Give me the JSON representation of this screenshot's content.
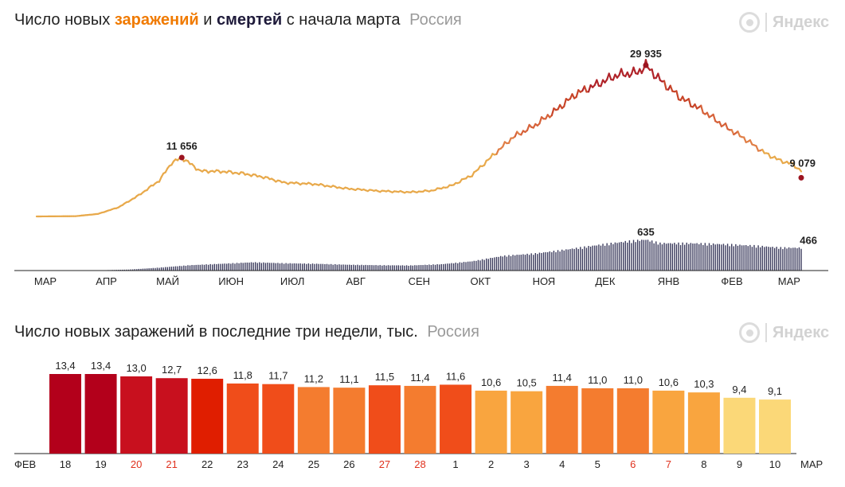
{
  "chart1": {
    "title_prefix": "Число новых ",
    "title_infections": "заражений",
    "title_and": " и ",
    "title_deaths": "смертей",
    "title_suffix": " с начала марта",
    "region": "Россия",
    "logo": "Яндекс"
  },
  "chart2": {
    "title": "Число новых заражений в последние три недели, тыс.",
    "region": "Россия",
    "logo": "Яндекс"
  },
  "chart_data": [
    {
      "type": "line",
      "title": "Число новых заражений и смертей с начала марта",
      "months": [
        "МАР",
        "АПР",
        "МАЙ",
        "ИЮН",
        "ИЮЛ",
        "АВГ",
        "СЕН",
        "ОКТ",
        "НОЯ",
        "ДЕК",
        "ЯНВ",
        "ФЕВ",
        "МАР"
      ],
      "x_range": [
        "2020-03-01",
        "2021-03-10"
      ],
      "series": [
        {
          "color": "#e8a94b",
          "points": [
            [
              "2020-03-01",
              0
            ],
            [
              "2020-03-20",
              50
            ],
            [
              "2020-03-31",
              500
            ],
            [
              "2020-04-10",
              1800
            ],
            [
              "2020-04-20",
              4200
            ],
            [
              "2020-04-30",
              7100
            ],
            [
              "2020-05-06",
              10600
            ],
            [
              "2020-05-11",
              11656
            ],
            [
              "2020-05-20",
              9000
            ],
            [
              "2020-05-31",
              8900
            ],
            [
              "2020-06-10",
              8500
            ],
            [
              "2020-06-20",
              7800
            ],
            [
              "2020-06-30",
              6700
            ],
            [
              "2020-07-15",
              6400
            ],
            [
              "2020-07-31",
              5500
            ],
            [
              "2020-08-15",
              5050
            ],
            [
              "2020-08-31",
              4800
            ],
            [
              "2020-09-10",
              5100
            ],
            [
              "2020-09-20",
              6100
            ],
            [
              "2020-09-30",
              8200
            ],
            [
              "2020-10-10",
              12000
            ],
            [
              "2020-10-20",
              15700
            ],
            [
              "2020-10-31",
              18100
            ],
            [
              "2020-11-10",
              21000
            ],
            [
              "2020-11-20",
              24300
            ],
            [
              "2020-11-30",
              26100
            ],
            [
              "2020-12-10",
              28000
            ],
            [
              "2020-12-20",
              28500
            ],
            [
              "2020-12-24",
              29935
            ],
            [
              "2020-12-31",
              27000
            ],
            [
              "2021-01-10",
              23500
            ],
            [
              "2021-01-20",
              21200
            ],
            [
              "2021-01-31",
              18000
            ],
            [
              "2021-02-10",
              15500
            ],
            [
              "2021-02-20",
              12600
            ],
            [
              "2021-02-28",
              11000
            ],
            [
              "2021-03-05",
              10500
            ],
            [
              "2021-03-10",
              9079
            ]
          ],
          "annotations": [
            {
              "date": "2020-05-11",
              "value": 11656,
              "label": "11 656"
            },
            {
              "date": "2020-12-24",
              "value": 29935,
              "label": "29 935"
            },
            {
              "date": "2021-03-10",
              "value": 9079,
              "label": "9 079"
            }
          ]
        },
        {
          "type": "bar",
          "color": "#3a3a5c",
          "points": [
            [
              "2020-03-01",
              0
            ],
            [
              "2020-03-31",
              5
            ],
            [
              "2020-04-15",
              20
            ],
            [
              "2020-04-30",
              60
            ],
            [
              "2020-05-15",
              110
            ],
            [
              "2020-05-31",
              140
            ],
            [
              "2020-06-15",
              170
            ],
            [
              "2020-06-30",
              150
            ],
            [
              "2020-07-15",
              140
            ],
            [
              "2020-07-31",
              120
            ],
            [
              "2020-08-15",
              110
            ],
            [
              "2020-08-31",
              105
            ],
            [
              "2020-09-15",
              130
            ],
            [
              "2020-09-30",
              190
            ],
            [
              "2020-10-15",
              300
            ],
            [
              "2020-10-31",
              350
            ],
            [
              "2020-11-15",
              430
            ],
            [
              "2020-11-30",
              520
            ],
            [
              "2020-12-15",
              600
            ],
            [
              "2020-12-24",
              635
            ],
            [
              "2020-12-31",
              560
            ],
            [
              "2021-01-15",
              560
            ],
            [
              "2021-01-31",
              540
            ],
            [
              "2021-02-15",
              510
            ],
            [
              "2021-02-28",
              470
            ],
            [
              "2021-03-10",
              466
            ]
          ],
          "annotations": [
            {
              "date": "2020-12-24",
              "value": 635,
              "label": "635"
            },
            {
              "date": "2021-03-10",
              "value": 466,
              "label": "466"
            }
          ]
        }
      ]
    },
    {
      "type": "bar",
      "title": "Число новых заражений в последние три недели, тыс.",
      "categories": [
        "18",
        "19",
        "20",
        "21",
        "22",
        "23",
        "24",
        "25",
        "26",
        "27",
        "28",
        "1",
        "2",
        "3",
        "4",
        "5",
        "6",
        "7",
        "8",
        "9",
        "10"
      ],
      "values": [
        13.4,
        13.4,
        13.0,
        12.7,
        12.6,
        11.8,
        11.7,
        11.2,
        11.1,
        11.5,
        11.4,
        11.6,
        10.6,
        10.5,
        11.4,
        11.0,
        11.0,
        10.6,
        10.3,
        9.4,
        9.1
      ],
      "labels": [
        "13,4",
        "13,4",
        "13,0",
        "12,7",
        "12,6",
        "11,8",
        "11,7",
        "11,2",
        "11,1",
        "11,5",
        "11,4",
        "11,6",
        "10,6",
        "10,5",
        "11,4",
        "11,0",
        "11,0",
        "10,6",
        "10,3",
        "9,4",
        "9,1"
      ],
      "weekend": [
        false,
        false,
        true,
        true,
        false,
        false,
        false,
        false,
        false,
        true,
        true,
        false,
        false,
        false,
        false,
        false,
        true,
        true,
        false,
        false,
        false
      ],
      "colors": [
        "#b3001b",
        "#b3001b",
        "#c8101e",
        "#c8101e",
        "#e01e00",
        "#f04d1a",
        "#f04d1a",
        "#f47c2f",
        "#f47c2f",
        "#f04d1a",
        "#f47c2f",
        "#f04d1a",
        "#f9a53f",
        "#f9a53f",
        "#f47c2f",
        "#f47c2f",
        "#f47c2f",
        "#f9a53f",
        "#f9a53f",
        "#fbd878",
        "#fbd878"
      ],
      "start_label": "ФЕВ",
      "end_label": "МАР",
      "weekend_color": "#e0321e",
      "ylim": [
        0,
        14
      ]
    }
  ]
}
